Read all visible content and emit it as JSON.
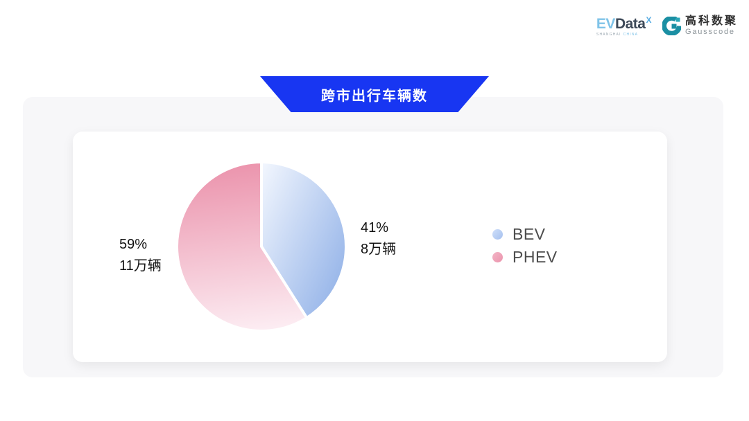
{
  "header": {
    "evdata": {
      "ev": "EV",
      "data": "Data",
      "sup": "X",
      "sub_left": "SHANGHAI",
      "sub_right": "CHINA"
    },
    "gausscode": {
      "cn": "高科数聚",
      "en": "Gausscode",
      "icon_color": "#1b8fa3"
    }
  },
  "banner": {
    "title": "跨市出行车辆数",
    "background": "#1836f2",
    "text_color": "#ffffff"
  },
  "chart_data": {
    "type": "pie",
    "title": "跨市出行车辆数",
    "unit": "万辆",
    "start_angle_deg": 0,
    "legend_position": "right",
    "slice_gap_color": "#ffffff",
    "series": [
      {
        "name": "BEV",
        "percent": 41,
        "value": 8,
        "percent_label": "41%",
        "value_label": "8万辆",
        "gradient": [
          "#f3f7fe",
          "#9cb9ea"
        ]
      },
      {
        "name": "PHEV",
        "percent": 59,
        "value": 11,
        "percent_label": "59%",
        "value_label": "11万辆",
        "gradient": [
          "#eb93ac",
          "#fcecf2"
        ]
      }
    ]
  }
}
